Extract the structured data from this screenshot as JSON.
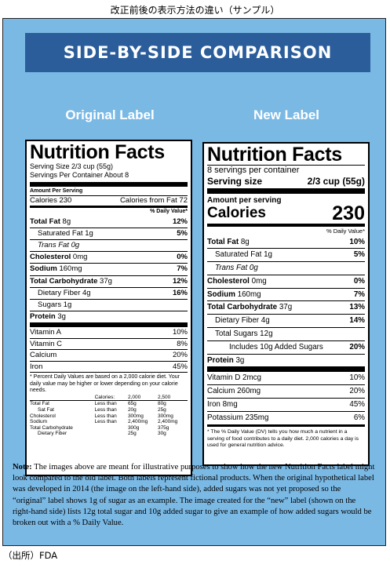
{
  "page_title": "改正前後の表示方法の違い（サンプル）",
  "banner": "SIDE-BY-SIDE COMPARISON",
  "original": {
    "heading": "Original Label",
    "title": "Nutrition Facts",
    "serving_size": "Serving Size 2/3 cup (55g)",
    "servings_per": "Servings Per Container About 8",
    "amount_per": "Amount Per Serving",
    "calories": "Calories 230",
    "calories_fat": "Calories from Fat 72",
    "dv_header": "% Daily Value*",
    "rows": [
      {
        "label": "Total Fat",
        "amt": "8g",
        "dv": "12%",
        "bold": true
      },
      {
        "label": "Saturated Fat 1g",
        "amt": "",
        "dv": "5%",
        "ind": 1
      },
      {
        "label": "Trans Fat 0g",
        "amt": "",
        "dv": "",
        "ind": 1
      },
      {
        "label": "Cholesterol",
        "amt": "0mg",
        "dv": "0%",
        "bold": true
      },
      {
        "label": "Sodium",
        "amt": "160mg",
        "dv": "7%",
        "bold": true
      },
      {
        "label": "Total Carbohydrate",
        "amt": "37g",
        "dv": "12%",
        "bold": true
      },
      {
        "label": "Dietary Fiber 4g",
        "amt": "",
        "dv": "16%",
        "ind": 1
      },
      {
        "label": "Sugars 1g",
        "amt": "",
        "dv": "",
        "ind": 1
      },
      {
        "label": "Protein",
        "amt": "3g",
        "dv": "",
        "bold": true
      }
    ],
    "vitamins": [
      {
        "label": "Vitamin A",
        "dv": "10%"
      },
      {
        "label": "Vitamin C",
        "dv": "8%"
      },
      {
        "label": "Calcium",
        "dv": "20%"
      },
      {
        "label": "Iron",
        "dv": "45%"
      }
    ],
    "footnote": "* Percent Daily Values are based on a 2,000 calorie diet. Your daily value may be higher or lower depending on your calorie needs.",
    "table_head": [
      "",
      "Calories:",
      "2,000",
      "2,500"
    ],
    "table_rows": [
      [
        "Total Fat",
        "Less than",
        "65g",
        "80g"
      ],
      [
        "Sat Fat",
        "Less than",
        "20g",
        "25g"
      ],
      [
        "Cholesterol",
        "Less than",
        "300mg",
        "300mg"
      ],
      [
        "Sodium",
        "Less than",
        "2,400mg",
        "2,400mg"
      ],
      [
        "Total Carbohydrate",
        "",
        "300g",
        "375g"
      ],
      [
        "Dietary Fiber",
        "",
        "25g",
        "30g"
      ]
    ]
  },
  "new": {
    "heading": "New Label",
    "title": "Nutrition Facts",
    "servings_per": "8 servings per container",
    "serving_size_label": "Serving size",
    "serving_size_value": "2/3 cup (55g)",
    "amount_per": "Amount per serving",
    "calories_label": "Calories",
    "calories_value": "230",
    "dv_header": "% Daily Value*",
    "rows": [
      {
        "label": "Total Fat",
        "amt": "8g",
        "dv": "10%",
        "bold": true
      },
      {
        "label": "Saturated Fat 1g",
        "amt": "",
        "dv": "5%",
        "ind": 1
      },
      {
        "label": "Trans Fat 0g",
        "amt": "",
        "dv": "",
        "ind": 1
      },
      {
        "label": "Cholesterol",
        "amt": "0mg",
        "dv": "0%",
        "bold": true
      },
      {
        "label": "Sodium",
        "amt": "160mg",
        "dv": "7%",
        "bold": true
      },
      {
        "label": "Total Carbohydrate",
        "amt": "37g",
        "dv": "13%",
        "bold": true
      },
      {
        "label": "Dietary Fiber 4g",
        "amt": "",
        "dv": "14%",
        "ind": 1
      },
      {
        "label": "Total Sugars 12g",
        "amt": "",
        "dv": "",
        "ind": 1
      },
      {
        "label": "Includes 10g Added Sugars",
        "amt": "",
        "dv": "20%",
        "ind": 2
      },
      {
        "label": "Protein",
        "amt": "3g",
        "dv": "",
        "bold": true
      }
    ],
    "vitamins": [
      {
        "label": "Vitamin D 2mcg",
        "dv": "10%"
      },
      {
        "label": "Calcium 260mg",
        "dv": "20%"
      },
      {
        "label": "Iron 8mg",
        "dv": "45%"
      },
      {
        "label": "Potassium 235mg",
        "dv": "6%"
      }
    ],
    "footnote": "* The % Daily Value (DV) tells you how much a nutrient in a serving of food contributes to a daily diet. 2,000 calories a day is used for general nutrition advice."
  },
  "note_label": "Note:",
  "note_text": " The images above are meant for illustrative purposes to show how the new Nutrition Facts label might look compared to the old label. Both labels represent fictional products. When the original hypothetical label was developed in 2014 (the image on the left-hand side), added sugars was not yet proposed so the “original” label shows 1g of sugar as an example. The image created for the “new” label (shown on the right-hand side) lists 12g total sugar and 10g added sugar to give an example of how added sugars would be broken out with a % Daily Value.",
  "source": "（出所）FDA"
}
